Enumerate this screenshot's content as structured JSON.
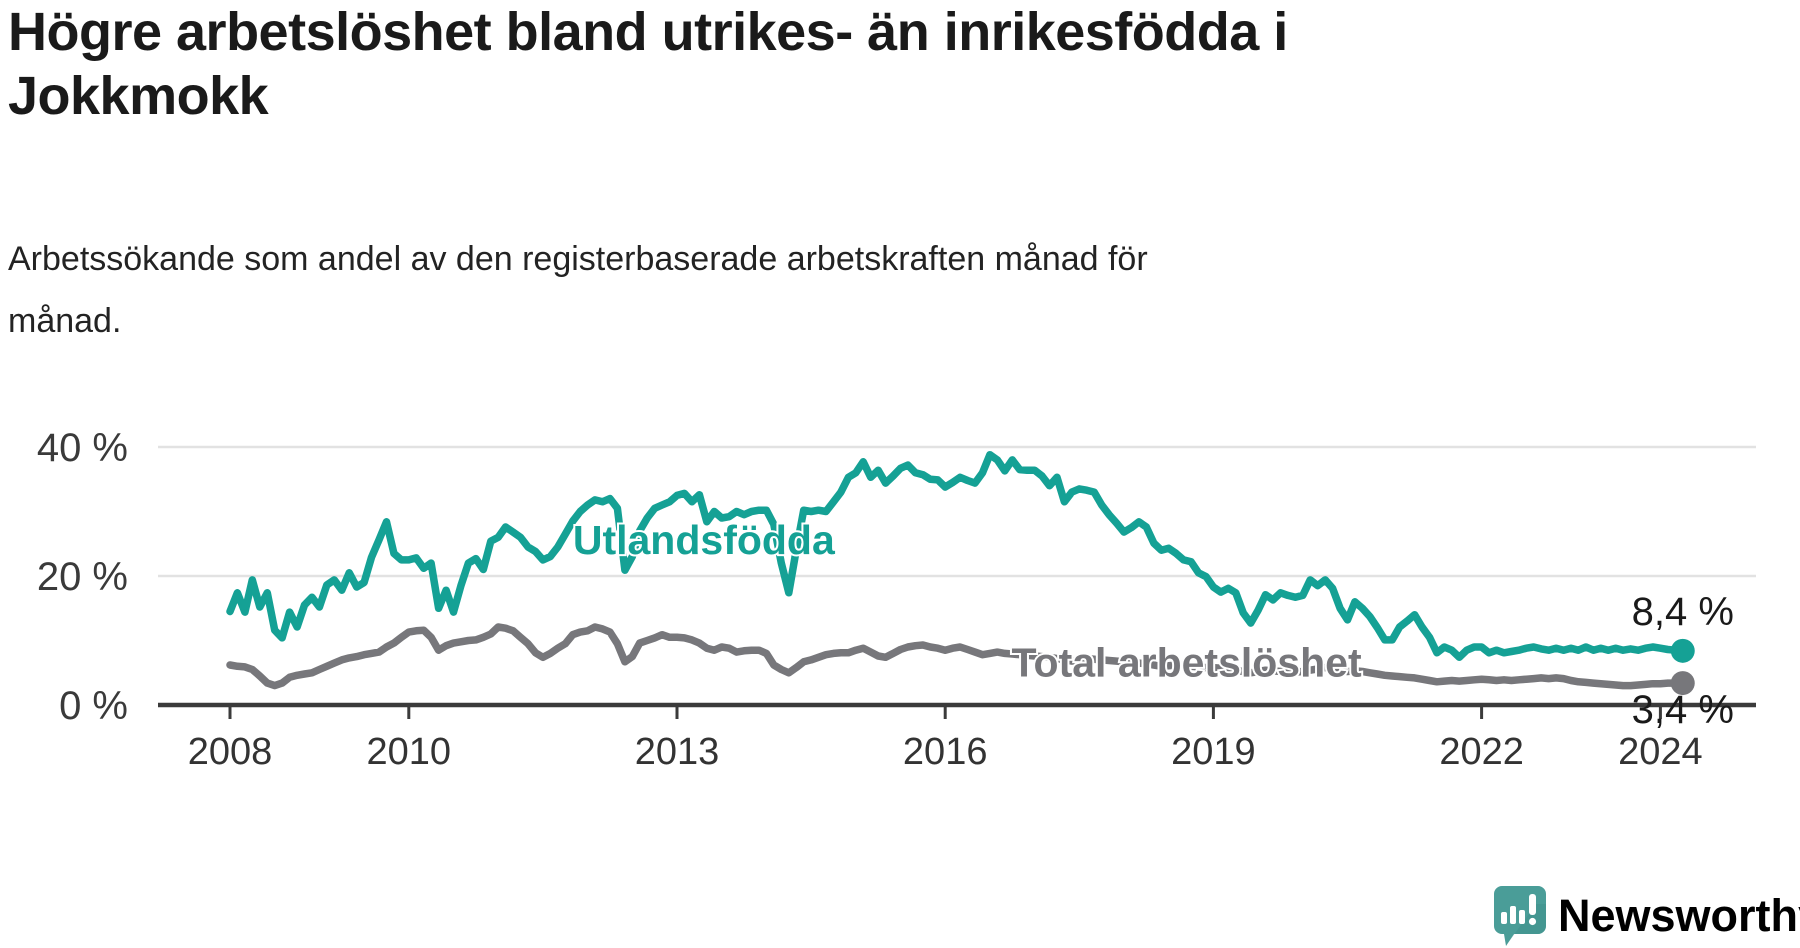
{
  "title": {
    "line1": "Högre arbetslöshet bland utrikes- än inrikesfödda i",
    "line2": "Jokkmokk"
  },
  "subtitle": {
    "line1": "Arbetssökande som andel av den registerbaserade arbetskraften månad för",
    "line2": "månad."
  },
  "branding": {
    "logo_text": "Newsworthy",
    "logo_icon": "speech-bubble-bar-chart-icon",
    "icon_color": "#4A9D98",
    "icon_shade_color": "#3F8F8A",
    "text_color": "#3E9C98"
  },
  "chart_data": {
    "type": "line",
    "title": "",
    "xlabel": "",
    "ylabel": "",
    "x_unit": "year_month",
    "start": {
      "year": 2008,
      "month": 1
    },
    "frequency": "monthly",
    "grid": "horizontal",
    "legend_position": "inline-labels",
    "ylim": [
      0,
      43
    ],
    "y_ticks": [
      {
        "value": 0,
        "label": "0 %"
      },
      {
        "value": 20,
        "label": "20 %"
      },
      {
        "value": 40,
        "label": "40 %"
      }
    ],
    "x_ticks": [
      {
        "value": 2008,
        "label": "2008"
      },
      {
        "value": 2010,
        "label": "2010"
      },
      {
        "value": 2013,
        "label": "2013"
      },
      {
        "value": 2016,
        "label": "2016"
      },
      {
        "value": 2019,
        "label": "2019"
      },
      {
        "value": 2022,
        "label": "2022"
      },
      {
        "value": 2024,
        "label": "2024"
      }
    ],
    "series": [
      {
        "name": "Utlandsfödda",
        "color": "#15A195",
        "end_label": "8,4 %",
        "last_value_pct": 8.4,
        "label_anchor": {
          "year": 2013.3,
          "pct": 25.6
        },
        "end_label_dy": -26,
        "values": [
          14.5,
          17.4,
          14.4,
          19.4,
          15.2,
          17.4,
          11.6,
          10.4,
          14.4,
          12.1,
          15.5,
          16.7,
          15.2,
          18.6,
          19.4,
          17.8,
          20.5,
          18.3,
          19.0,
          22.9,
          25.6,
          28.4,
          23.5,
          22.5,
          22.5,
          22.8,
          21.2,
          22.0,
          15.0,
          17.8,
          14.4,
          18.5,
          22.0,
          22.7,
          21.0,
          25.4,
          26.0,
          27.6,
          26.8,
          26.0,
          24.5,
          23.8,
          22.5,
          23.0,
          24.5,
          26.5,
          28.5,
          30.0,
          31.0,
          31.8,
          31.5,
          32.0,
          30.5,
          20.9,
          23.0,
          27.0,
          29.0,
          30.5,
          31.0,
          31.5,
          32.5,
          32.8,
          31.5,
          32.6,
          28.4,
          30.0,
          29.0,
          29.2,
          30.0,
          29.5,
          30.0,
          30.2,
          30.2,
          28.0,
          22.0,
          17.4,
          24.0,
          30.2,
          30.0,
          30.2,
          30.0,
          31.5,
          33.0,
          35.3,
          36.0,
          37.7,
          35.3,
          36.4,
          34.4,
          35.5,
          36.7,
          37.2,
          36.0,
          35.7,
          35.0,
          34.9,
          33.8,
          34.5,
          35.3,
          34.8,
          34.4,
          36.0,
          38.8,
          38.0,
          36.3,
          38.0,
          36.5,
          36.4,
          36.4,
          35.5,
          34.0,
          35.3,
          31.5,
          33.0,
          33.5,
          33.3,
          33.0,
          31.0,
          29.5,
          28.2,
          26.8,
          27.5,
          28.4,
          27.6,
          25.1,
          24.0,
          24.3,
          23.5,
          22.5,
          22.2,
          20.5,
          19.9,
          18.3,
          17.5,
          18.1,
          17.4,
          14.3,
          12.7,
          14.7,
          17.1,
          16.3,
          17.4,
          17.0,
          16.7,
          17.0,
          19.4,
          18.5,
          19.4,
          18.1,
          15.0,
          13.2,
          16.0,
          15.0,
          13.7,
          12.0,
          10.1,
          10.1,
          12.1,
          13.0,
          14.0,
          12.1,
          10.5,
          8.1,
          9.0,
          8.5,
          7.4,
          8.5,
          9.0,
          9.0,
          8.1,
          8.5,
          8.1,
          8.3,
          8.5,
          8.8,
          9.0,
          8.7,
          8.5,
          8.8,
          8.5,
          8.8,
          8.5,
          9.0,
          8.5,
          8.8,
          8.5,
          8.8,
          8.5,
          8.7,
          8.5,
          8.8,
          9.0,
          8.8,
          8.6,
          8.5,
          8.4
        ]
      },
      {
        "name": "Total arbetslöshet",
        "color": "#77777B",
        "end_label": "3,4 %",
        "last_value_pct": 3.4,
        "label_anchor": {
          "year": 2018.7,
          "pct": 6.6
        },
        "end_label_dy": 40,
        "values": [
          6.2,
          6.0,
          5.9,
          5.5,
          4.5,
          3.4,
          3.0,
          3.4,
          4.3,
          4.6,
          4.8,
          5.0,
          5.5,
          6.0,
          6.5,
          7.0,
          7.3,
          7.5,
          7.8,
          8.0,
          8.2,
          9.0,
          9.6,
          10.5,
          11.3,
          11.5,
          11.6,
          10.5,
          8.5,
          9.2,
          9.6,
          9.8,
          10.0,
          10.1,
          10.5,
          11.0,
          12.1,
          11.9,
          11.5,
          10.5,
          9.5,
          8.1,
          7.4,
          8.0,
          8.8,
          9.5,
          10.9,
          11.3,
          11.5,
          12.1,
          11.8,
          11.3,
          9.5,
          6.7,
          7.5,
          9.6,
          10.0,
          10.4,
          10.9,
          10.5,
          10.5,
          10.4,
          10.1,
          9.6,
          8.8,
          8.5,
          9.0,
          8.8,
          8.2,
          8.4,
          8.5,
          8.5,
          8.0,
          6.2,
          5.5,
          5.0,
          5.8,
          6.7,
          7.0,
          7.4,
          7.8,
          8.0,
          8.1,
          8.1,
          8.5,
          8.8,
          8.2,
          7.6,
          7.4,
          8.0,
          8.6,
          9.0,
          9.2,
          9.3,
          9.0,
          8.8,
          8.5,
          8.8,
          9.0,
          8.6,
          8.2,
          7.8,
          8.0,
          8.2,
          8.0,
          7.9,
          7.8,
          7.7,
          7.6,
          7.5,
          7.4,
          7.2,
          7.0,
          6.8,
          7.0,
          7.2,
          7.1,
          7.0,
          6.9,
          6.8,
          6.7,
          6.6,
          6.5,
          6.4,
          6.2,
          6.0,
          6.1,
          6.2,
          6.1,
          6.0,
          5.9,
          5.8,
          5.8,
          5.7,
          5.6,
          5.4,
          5.2,
          5.0,
          5.2,
          5.4,
          5.3,
          5.2,
          5.2,
          5.1,
          5.2,
          5.4,
          5.6,
          5.8,
          5.6,
          5.3,
          5.2,
          5.3,
          5.2,
          5.0,
          4.8,
          4.6,
          4.5,
          4.4,
          4.3,
          4.2,
          4.0,
          3.8,
          3.6,
          3.7,
          3.8,
          3.7,
          3.8,
          3.9,
          4.0,
          3.9,
          3.8,
          3.9,
          3.8,
          3.9,
          4.0,
          4.1,
          4.2,
          4.1,
          4.2,
          4.1,
          3.8,
          3.6,
          3.5,
          3.4,
          3.3,
          3.2,
          3.1,
          3.0,
          3.0,
          3.1,
          3.2,
          3.3,
          3.3,
          3.4,
          3.4,
          3.4
        ]
      }
    ]
  }
}
